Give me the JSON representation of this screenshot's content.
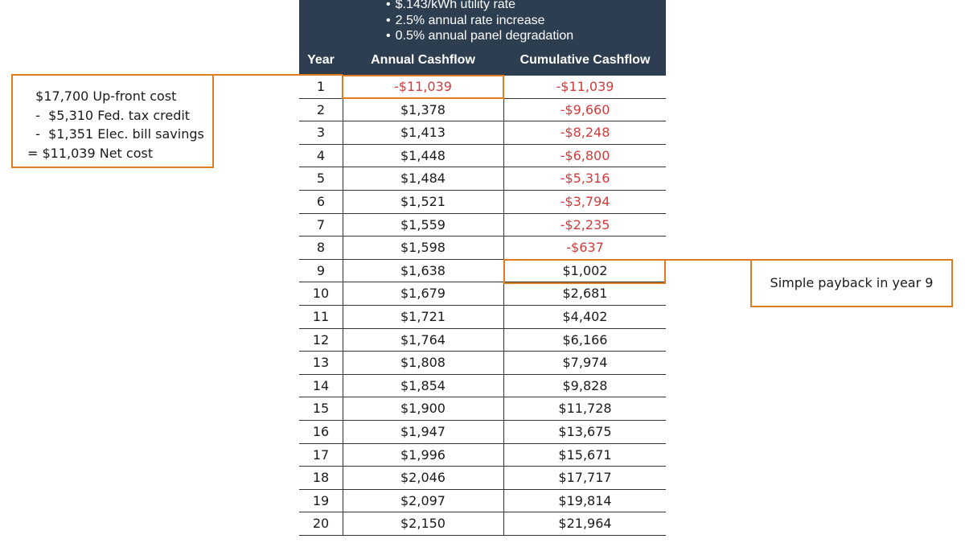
{
  "chart_data": {
    "type": "table",
    "assumptions": [
      "$.143/kWh utility rate",
      "2.5% annual rate increase",
      "0.5% annual panel degradation"
    ],
    "columns": [
      "Year",
      "Annual Cashflow",
      "Cumulative Cashflow"
    ],
    "rows": [
      {
        "year": "1",
        "annual": "-$11,039",
        "cumulative": "-$11,039"
      },
      {
        "year": "2",
        "annual": "$1,378",
        "cumulative": "-$9,660"
      },
      {
        "year": "3",
        "annual": "$1,413",
        "cumulative": "-$8,248"
      },
      {
        "year": "4",
        "annual": "$1,448",
        "cumulative": "-$6,800"
      },
      {
        "year": "5",
        "annual": "$1,484",
        "cumulative": "-$5,316"
      },
      {
        "year": "6",
        "annual": "$1,521",
        "cumulative": "-$3,794"
      },
      {
        "year": "7",
        "annual": "$1,559",
        "cumulative": "-$2,235"
      },
      {
        "year": "8",
        "annual": "$1,598",
        "cumulative": "-$637"
      },
      {
        "year": "9",
        "annual": "$1,638",
        "cumulative": "$1,002"
      },
      {
        "year": "10",
        "annual": "$1,679",
        "cumulative": "$2,681"
      },
      {
        "year": "11",
        "annual": "$1,721",
        "cumulative": "$4,402"
      },
      {
        "year": "12",
        "annual": "$1,764",
        "cumulative": "$6,166"
      },
      {
        "year": "13",
        "annual": "$1,808",
        "cumulative": "$7,974"
      },
      {
        "year": "14",
        "annual": "$1,854",
        "cumulative": "$9,828"
      },
      {
        "year": "15",
        "annual": "$1,900",
        "cumulative": "$11,728"
      },
      {
        "year": "16",
        "annual": "$1,947",
        "cumulative": "$13,675"
      },
      {
        "year": "17",
        "annual": "$1,996",
        "cumulative": "$15,671"
      },
      {
        "year": "18",
        "annual": "$2,046",
        "cumulative": "$17,717"
      },
      {
        "year": "19",
        "annual": "$2,097",
        "cumulative": "$19,814"
      },
      {
        "year": "20",
        "annual": "$2,150",
        "cumulative": "$21,964"
      }
    ],
    "negative_color": "#d13b3b",
    "header_color": "#2c3e50",
    "highlight_color": "#e07b1f"
  },
  "callouts": {
    "cost_breakdown": [
      "  $17,700 Up-front cost",
      "  -  $5,310 Fed. tax credit",
      "  -  $1,351 Elec. bill savings",
      "= $11,039 Net cost"
    ],
    "payback": "Simple payback in year 9"
  }
}
